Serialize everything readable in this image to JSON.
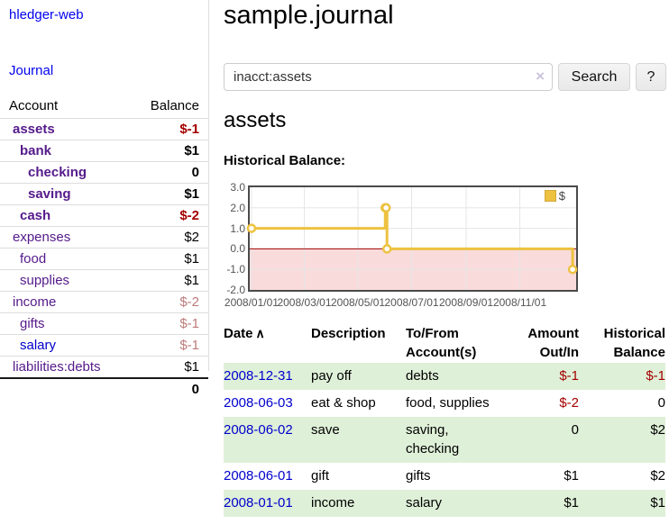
{
  "sidebar": {
    "brand": "hledger-web",
    "nav": {
      "journal": "Journal"
    },
    "table": {
      "account_header": "Account",
      "balance_header": "Balance",
      "rows": [
        {
          "account": "assets",
          "depth": 1,
          "bold": true,
          "link_color": "purple",
          "balance": "$-1",
          "balance_style": "neg-strong"
        },
        {
          "account": "bank",
          "depth": 2,
          "bold": true,
          "link_color": "purple",
          "balance": "$1",
          "balance_style": "pos-strong"
        },
        {
          "account": "checking",
          "depth": 3,
          "bold": true,
          "link_color": "purple",
          "balance": "0",
          "balance_style": "pos-strong"
        },
        {
          "account": "saving",
          "depth": 3,
          "bold": true,
          "link_color": "purple",
          "balance": "$1",
          "balance_style": "pos-strong"
        },
        {
          "account": "cash",
          "depth": 2,
          "bold": true,
          "link_color": "purple",
          "balance": "$-2",
          "balance_style": "neg-strong"
        },
        {
          "account": "expenses",
          "depth": 1,
          "bold": false,
          "link_color": "purple",
          "balance": "$2",
          "balance_style": "pos"
        },
        {
          "account": "food",
          "depth": 2,
          "bold": false,
          "link_color": "purple",
          "balance": "$1",
          "balance_style": "pos"
        },
        {
          "account": "supplies",
          "depth": 2,
          "bold": false,
          "link_color": "purple",
          "balance": "$1",
          "balance_style": "pos"
        },
        {
          "account": "income",
          "depth": 1,
          "bold": false,
          "link_color": "purple",
          "balance": "$-2",
          "balance_style": "neg-soft"
        },
        {
          "account": "gifts",
          "depth": 2,
          "bold": false,
          "link_color": "purple",
          "balance": "$-1",
          "balance_style": "neg-soft"
        },
        {
          "account": "salary",
          "depth": 2,
          "bold": false,
          "link_color": "blue",
          "balance": "$-1",
          "balance_style": "neg-soft"
        },
        {
          "account": "liabilities:debts",
          "depth": 1,
          "bold": false,
          "link_color": "purple",
          "balance": "$1",
          "balance_style": "pos"
        }
      ],
      "total": "0"
    }
  },
  "main": {
    "title": "sample.journal",
    "search": {
      "value": "inacct:assets",
      "clear_icon": "×",
      "search_button": "Search",
      "help_button": "?"
    },
    "account_title": "assets",
    "chart_heading": "Historical Balance:"
  },
  "chart_data": {
    "type": "line",
    "style": "steps",
    "title": "Historical Balance",
    "series": [
      {
        "name": "$",
        "color": "#edc240",
        "points": [
          {
            "date": "2008-01-01",
            "value": 1
          },
          {
            "date": "2008-06-01",
            "value": 2
          },
          {
            "date": "2008-06-02",
            "value": 2
          },
          {
            "date": "2008-06-03",
            "value": 0
          },
          {
            "date": "2008-12-31",
            "value": -1
          }
        ]
      }
    ],
    "x_domain": [
      "2007-12-30",
      "2009-01-04"
    ],
    "x_ticks": [
      {
        "date": "2008-01-01",
        "label": "2008/01/01"
      },
      {
        "date": "2008-03-01",
        "label": "2008/03/01"
      },
      {
        "date": "2008-05-01",
        "label": "2008/05/01"
      },
      {
        "date": "2008-07-01",
        "label": "2008/07/01"
      },
      {
        "date": "2008-09-01",
        "label": "2008/09/01"
      },
      {
        "date": "2008-11-01",
        "label": "2008/11/01"
      }
    ],
    "ylim": [
      -2,
      3
    ],
    "y_ticks": [
      {
        "value": 3,
        "label": "3.0"
      },
      {
        "value": 2,
        "label": "2.0"
      },
      {
        "value": 1,
        "label": "1.0"
      },
      {
        "value": 0,
        "label": "0.0"
      },
      {
        "value": -1,
        "label": "-1.0"
      },
      {
        "value": -2,
        "label": "-2.0"
      }
    ],
    "legend": {
      "label": "$",
      "position": "top-right"
    },
    "grid": true,
    "gridline_color": "#e6e6e6",
    "negative_region_color": "#f9dbdb",
    "zero_line_color": "#a40000"
  },
  "register": {
    "headers": {
      "date": "Date",
      "sort_icon": "∧",
      "description": "Description",
      "accounts": "To/From\nAccount(s)",
      "amount": "Amount\nOut/In",
      "balance": "Historical\nBalance"
    },
    "rows": [
      {
        "date": "2008-12-31",
        "description": "pay off",
        "accounts": "debts",
        "amount": "$-1",
        "amount_negative": true,
        "balance": "$-1",
        "balance_negative": true,
        "shaded": true
      },
      {
        "date": "2008-06-03",
        "description": "eat & shop",
        "accounts": "food, supplies",
        "amount": "$-2",
        "amount_negative": true,
        "balance": "0",
        "balance_negative": false,
        "shaded": false
      },
      {
        "date": "2008-06-02",
        "description": "save",
        "accounts": "saving,\nchecking",
        "amount": "0",
        "amount_negative": false,
        "balance": "$2",
        "balance_negative": false,
        "shaded": true
      },
      {
        "date": "2008-06-01",
        "description": "gift",
        "accounts": "gifts",
        "amount": "$1",
        "amount_negative": false,
        "balance": "$2",
        "balance_negative": false,
        "shaded": false
      },
      {
        "date": "2008-01-01",
        "description": "income",
        "accounts": "salary",
        "amount": "$1",
        "amount_negative": false,
        "balance": "$1",
        "balance_negative": false,
        "shaded": true
      }
    ]
  },
  "colors": {
    "link_purple": "#551a8b",
    "link_blue": "#0000cc",
    "negative_strong": "#a40000",
    "negative_soft": "#bd7b7b",
    "row_shade_green": "#dff0d8",
    "chart_line": "#edc240",
    "chart_border": "#4a4a4a"
  }
}
